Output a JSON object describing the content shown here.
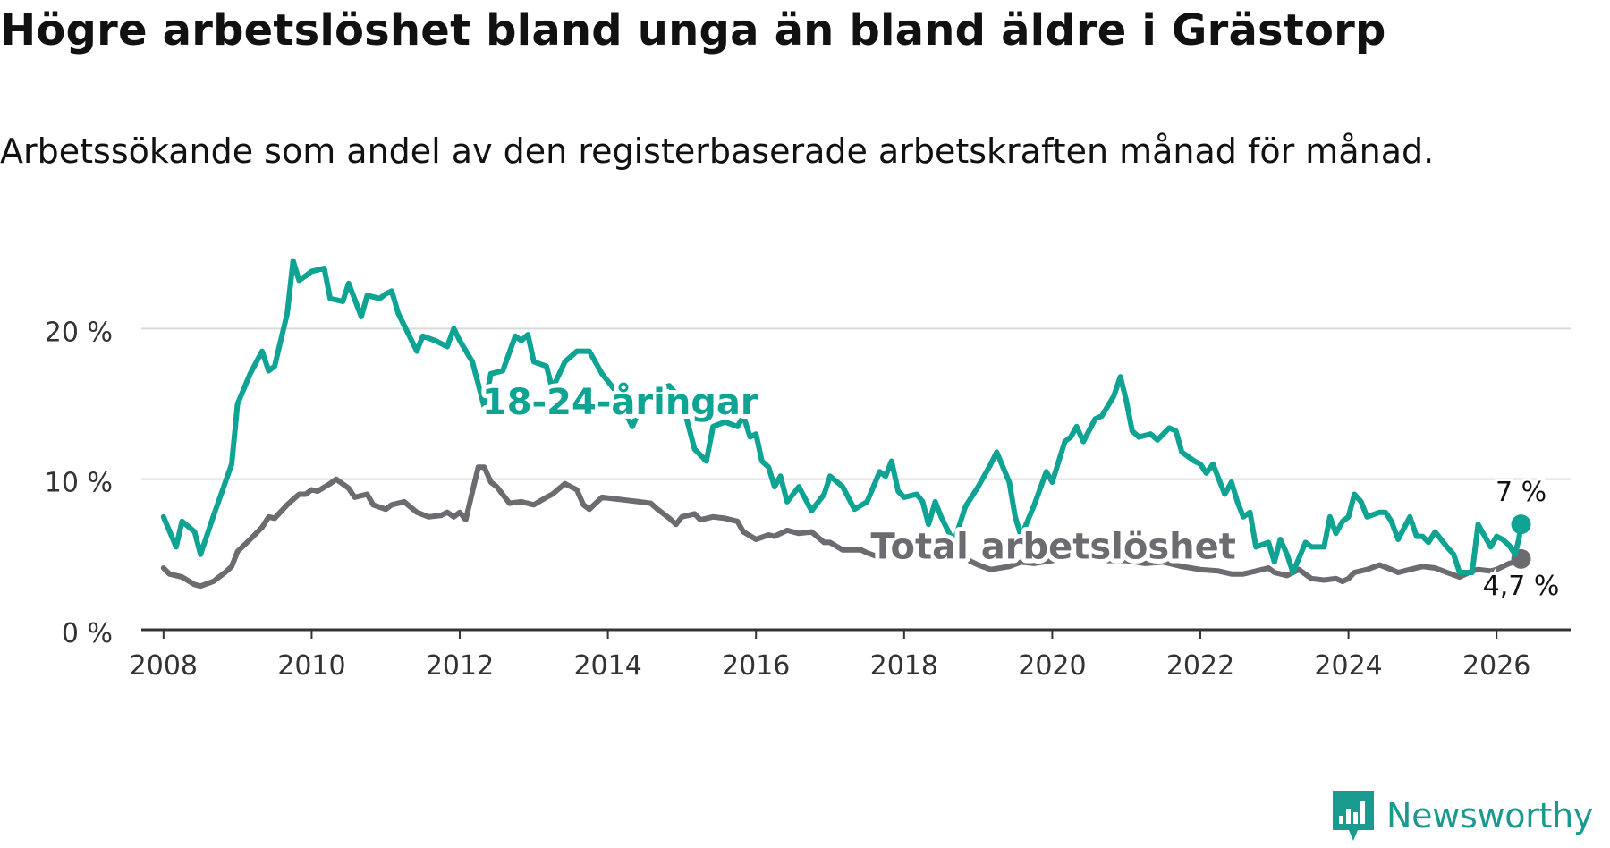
{
  "title": "Högre arbetslöshet bland unga än bland äldre i Grästorp",
  "subtitle": "Arbetssökande som andel av den registerbaserade arbetskraften månad för månad.",
  "brand": {
    "name": "Newsworthy",
    "icon": "newsworthy-logo-icon"
  },
  "colors": {
    "youth": "#0ea393",
    "total": "#6c6b70",
    "grid": "#d9d9d9",
    "axis": "#333333"
  },
  "chart_data": {
    "type": "line",
    "title": "Högre arbetslöshet bland unga än bland äldre i Grästorp",
    "xlabel": "",
    "ylabel": "",
    "xlim": [
      2007.7,
      2027.0
    ],
    "ylim": [
      0,
      24
    ],
    "yticks": [
      0,
      10,
      20
    ],
    "ytick_labels": [
      "0 %",
      "10 %",
      "20 %"
    ],
    "xticks": [
      2008,
      2010,
      2012,
      2014,
      2016,
      2018,
      2020,
      2022,
      2024,
      2026
    ],
    "xtick_labels": [
      "2008",
      "2010",
      "2012",
      "2014",
      "2016",
      "2018",
      "2020",
      "2022",
      "2024",
      "2026"
    ],
    "grid": true,
    "series": [
      {
        "name": "18-24-åringar",
        "label_text": "18-24-åringar",
        "color": "#0ea393",
        "end_label": "7 %",
        "end_value": 7.0,
        "points": [
          [
            2008.0,
            7.5
          ],
          [
            2008.17,
            5.5
          ],
          [
            2008.25,
            7.2
          ],
          [
            2008.42,
            6.5
          ],
          [
            2008.5,
            5.0
          ],
          [
            2008.67,
            7.5
          ],
          [
            2008.92,
            11.0
          ],
          [
            2009.0,
            15.0
          ],
          [
            2009.17,
            17.0
          ],
          [
            2009.33,
            18.5
          ],
          [
            2009.42,
            17.2
          ],
          [
            2009.5,
            17.5
          ],
          [
            2009.67,
            21.0
          ],
          [
            2009.75,
            24.5
          ],
          [
            2009.83,
            23.2
          ],
          [
            2009.92,
            23.5
          ],
          [
            2010.0,
            23.8
          ],
          [
            2010.17,
            24.0
          ],
          [
            2010.25,
            22.0
          ],
          [
            2010.42,
            21.8
          ],
          [
            2010.5,
            23.0
          ],
          [
            2010.67,
            20.8
          ],
          [
            2010.75,
            22.2
          ],
          [
            2010.92,
            22.0
          ],
          [
            2011.0,
            22.3
          ],
          [
            2011.08,
            22.5
          ],
          [
            2011.17,
            21.0
          ],
          [
            2011.42,
            18.5
          ],
          [
            2011.5,
            19.5
          ],
          [
            2011.67,
            19.2
          ],
          [
            2011.83,
            18.8
          ],
          [
            2011.92,
            20.0
          ],
          [
            2012.0,
            19.2
          ],
          [
            2012.17,
            17.8
          ],
          [
            2012.33,
            14.8
          ],
          [
            2012.42,
            17.0
          ],
          [
            2012.58,
            17.2
          ],
          [
            2012.75,
            19.5
          ],
          [
            2012.83,
            19.2
          ],
          [
            2012.92,
            19.6
          ],
          [
            2013.0,
            17.8
          ],
          [
            2013.17,
            17.5
          ],
          [
            2013.25,
            16.0
          ],
          [
            2013.42,
            17.8
          ],
          [
            2013.58,
            18.5
          ],
          [
            2013.75,
            18.5
          ],
          [
            2013.92,
            17.0
          ],
          [
            2014.08,
            16.0
          ],
          [
            2014.33,
            13.5
          ],
          [
            2014.5,
            15.5
          ],
          [
            2014.67,
            16.0
          ],
          [
            2014.83,
            16.2
          ],
          [
            2015.0,
            15.2
          ],
          [
            2015.17,
            12.0
          ],
          [
            2015.33,
            11.2
          ],
          [
            2015.42,
            13.5
          ],
          [
            2015.58,
            13.8
          ],
          [
            2015.75,
            13.5
          ],
          [
            2015.83,
            14.2
          ],
          [
            2015.92,
            12.8
          ],
          [
            2016.0,
            13.0
          ],
          [
            2016.08,
            11.2
          ],
          [
            2016.17,
            10.8
          ],
          [
            2016.25,
            9.5
          ],
          [
            2016.33,
            10.2
          ],
          [
            2016.42,
            8.5
          ],
          [
            2016.58,
            9.5
          ],
          [
            2016.75,
            7.9
          ],
          [
            2016.92,
            9.0
          ],
          [
            2017.0,
            10.2
          ],
          [
            2017.17,
            9.5
          ],
          [
            2017.33,
            8.0
          ],
          [
            2017.5,
            8.5
          ],
          [
            2017.67,
            10.5
          ],
          [
            2017.75,
            10.2
          ],
          [
            2017.83,
            11.2
          ],
          [
            2017.92,
            9.2
          ],
          [
            2018.0,
            8.8
          ],
          [
            2018.17,
            9.0
          ],
          [
            2018.25,
            8.5
          ],
          [
            2018.33,
            7.0
          ],
          [
            2018.42,
            8.5
          ],
          [
            2018.5,
            7.5
          ],
          [
            2018.67,
            5.8
          ],
          [
            2018.83,
            8.2
          ],
          [
            2019.0,
            9.5
          ],
          [
            2019.17,
            11.0
          ],
          [
            2019.25,
            11.8
          ],
          [
            2019.42,
            9.8
          ],
          [
            2019.5,
            7.5
          ],
          [
            2019.58,
            6.2
          ],
          [
            2019.75,
            8.2
          ],
          [
            2019.92,
            10.5
          ],
          [
            2020.0,
            9.8
          ],
          [
            2020.17,
            12.5
          ],
          [
            2020.25,
            12.8
          ],
          [
            2020.33,
            13.5
          ],
          [
            2020.42,
            12.5
          ],
          [
            2020.58,
            14.0
          ],
          [
            2020.67,
            14.2
          ],
          [
            2020.83,
            15.5
          ],
          [
            2020.92,
            16.8
          ],
          [
            2021.0,
            15.2
          ],
          [
            2021.08,
            13.2
          ],
          [
            2021.17,
            12.8
          ],
          [
            2021.33,
            13.0
          ],
          [
            2021.42,
            12.6
          ],
          [
            2021.58,
            13.4
          ],
          [
            2021.67,
            13.2
          ],
          [
            2021.75,
            11.8
          ],
          [
            2021.92,
            11.2
          ],
          [
            2022.0,
            11.0
          ],
          [
            2022.08,
            10.4
          ],
          [
            2022.17,
            11.0
          ],
          [
            2022.25,
            10.0
          ],
          [
            2022.33,
            9.0
          ],
          [
            2022.42,
            9.8
          ],
          [
            2022.5,
            8.5
          ],
          [
            2022.58,
            7.5
          ],
          [
            2022.67,
            7.8
          ],
          [
            2022.75,
            5.5
          ],
          [
            2022.92,
            5.8
          ],
          [
            2023.0,
            4.5
          ],
          [
            2023.08,
            6.0
          ],
          [
            2023.17,
            5.0
          ],
          [
            2023.25,
            3.8
          ],
          [
            2023.42,
            5.8
          ],
          [
            2023.5,
            5.5
          ],
          [
            2023.67,
            5.5
          ],
          [
            2023.75,
            7.5
          ],
          [
            2023.83,
            6.4
          ],
          [
            2023.92,
            7.2
          ],
          [
            2024.0,
            7.5
          ],
          [
            2024.08,
            9.0
          ],
          [
            2024.17,
            8.5
          ],
          [
            2024.25,
            7.5
          ],
          [
            2024.42,
            7.8
          ],
          [
            2024.5,
            7.8
          ],
          [
            2024.58,
            7.2
          ],
          [
            2024.67,
            6.0
          ],
          [
            2024.83,
            7.5
          ],
          [
            2024.92,
            6.2
          ],
          [
            2025.0,
            6.2
          ],
          [
            2025.08,
            5.8
          ],
          [
            2025.17,
            6.5
          ],
          [
            2025.25,
            6.0
          ],
          [
            2025.33,
            5.5
          ],
          [
            2025.42,
            5.0
          ],
          [
            2025.5,
            3.8
          ],
          [
            2025.67,
            3.8
          ],
          [
            2025.75,
            7.0
          ],
          [
            2025.92,
            5.5
          ],
          [
            2026.0,
            6.2
          ],
          [
            2026.08,
            6.0
          ],
          [
            2026.17,
            5.6
          ],
          [
            2026.25,
            5.0
          ],
          [
            2026.3,
            6.0
          ],
          [
            2026.33,
            7.0
          ]
        ]
      },
      {
        "name": "Total arbetslöshet",
        "label_text": "Total arbetslöshet",
        "color": "#6c6b70",
        "end_label": "4,7 %",
        "end_value": 4.7,
        "points": [
          [
            2008.0,
            4.1
          ],
          [
            2008.08,
            3.7
          ],
          [
            2008.25,
            3.5
          ],
          [
            2008.42,
            3.0
          ],
          [
            2008.5,
            2.9
          ],
          [
            2008.67,
            3.2
          ],
          [
            2008.83,
            3.8
          ],
          [
            2008.92,
            4.2
          ],
          [
            2009.0,
            5.2
          ],
          [
            2009.17,
            6.0
          ],
          [
            2009.33,
            6.8
          ],
          [
            2009.42,
            7.5
          ],
          [
            2009.5,
            7.4
          ],
          [
            2009.67,
            8.3
          ],
          [
            2009.83,
            9.0
          ],
          [
            2009.92,
            9.0
          ],
          [
            2010.0,
            9.3
          ],
          [
            2010.08,
            9.2
          ],
          [
            2010.25,
            9.7
          ],
          [
            2010.33,
            10.0
          ],
          [
            2010.5,
            9.4
          ],
          [
            2010.58,
            8.8
          ],
          [
            2010.75,
            9.0
          ],
          [
            2010.83,
            8.3
          ],
          [
            2011.0,
            8.0
          ],
          [
            2011.08,
            8.3
          ],
          [
            2011.25,
            8.5
          ],
          [
            2011.42,
            7.8
          ],
          [
            2011.58,
            7.5
          ],
          [
            2011.75,
            7.6
          ],
          [
            2011.83,
            7.8
          ],
          [
            2011.92,
            7.5
          ],
          [
            2012.0,
            7.8
          ],
          [
            2012.08,
            7.3
          ],
          [
            2012.25,
            10.8
          ],
          [
            2012.33,
            10.8
          ],
          [
            2012.42,
            9.8
          ],
          [
            2012.5,
            9.5
          ],
          [
            2012.67,
            8.4
          ],
          [
            2012.83,
            8.5
          ],
          [
            2013.0,
            8.3
          ],
          [
            2013.17,
            8.8
          ],
          [
            2013.25,
            9.0
          ],
          [
            2013.42,
            9.7
          ],
          [
            2013.58,
            9.3
          ],
          [
            2013.67,
            8.3
          ],
          [
            2013.75,
            8.0
          ],
          [
            2013.92,
            8.8
          ],
          [
            2014.08,
            8.7
          ],
          [
            2014.25,
            8.6
          ],
          [
            2014.42,
            8.5
          ],
          [
            2014.58,
            8.4
          ],
          [
            2014.67,
            8.0
          ],
          [
            2014.83,
            7.4
          ],
          [
            2014.92,
            7.0
          ],
          [
            2015.0,
            7.5
          ],
          [
            2015.17,
            7.7
          ],
          [
            2015.25,
            7.3
          ],
          [
            2015.42,
            7.5
          ],
          [
            2015.58,
            7.4
          ],
          [
            2015.75,
            7.2
          ],
          [
            2015.83,
            6.5
          ],
          [
            2016.0,
            6.0
          ],
          [
            2016.17,
            6.3
          ],
          [
            2016.25,
            6.2
          ],
          [
            2016.42,
            6.6
          ],
          [
            2016.58,
            6.4
          ],
          [
            2016.75,
            6.5
          ],
          [
            2016.92,
            5.8
          ],
          [
            2017.0,
            5.8
          ],
          [
            2017.17,
            5.3
          ],
          [
            2017.42,
            5.3
          ],
          [
            2017.5,
            5.1
          ],
          [
            2017.67,
            4.8
          ],
          [
            2017.83,
            5.2
          ],
          [
            2018.0,
            5.3
          ],
          [
            2018.25,
            5.0
          ],
          [
            2018.42,
            5.3
          ],
          [
            2018.58,
            5.1
          ],
          [
            2018.75,
            4.9
          ],
          [
            2019.0,
            4.3
          ],
          [
            2019.17,
            4.0
          ],
          [
            2019.42,
            4.2
          ],
          [
            2019.58,
            4.5
          ],
          [
            2019.75,
            4.4
          ],
          [
            2020.0,
            4.6
          ],
          [
            2020.25,
            4.8
          ],
          [
            2020.5,
            5.0
          ],
          [
            2020.75,
            4.6
          ],
          [
            2021.0,
            4.6
          ],
          [
            2021.25,
            4.4
          ],
          [
            2021.5,
            4.5
          ],
          [
            2021.75,
            4.2
          ],
          [
            2022.0,
            4.0
          ],
          [
            2022.25,
            3.9
          ],
          [
            2022.42,
            3.7
          ],
          [
            2022.58,
            3.7
          ],
          [
            2022.75,
            3.9
          ],
          [
            2022.92,
            4.1
          ],
          [
            2023.0,
            3.8
          ],
          [
            2023.17,
            3.6
          ],
          [
            2023.33,
            4.0
          ],
          [
            2023.5,
            3.4
          ],
          [
            2023.67,
            3.3
          ],
          [
            2023.83,
            3.4
          ],
          [
            2023.92,
            3.2
          ],
          [
            2024.0,
            3.4
          ],
          [
            2024.08,
            3.8
          ],
          [
            2024.25,
            4.0
          ],
          [
            2024.42,
            4.3
          ],
          [
            2024.58,
            4.0
          ],
          [
            2024.67,
            3.8
          ],
          [
            2024.83,
            4.0
          ],
          [
            2025.0,
            4.2
          ],
          [
            2025.17,
            4.1
          ],
          [
            2025.33,
            3.8
          ],
          [
            2025.5,
            3.5
          ],
          [
            2025.67,
            3.9
          ],
          [
            2025.75,
            4.0
          ],
          [
            2025.92,
            3.9
          ],
          [
            2026.0,
            4.0
          ],
          [
            2026.17,
            4.4
          ],
          [
            2026.25,
            4.5
          ],
          [
            2026.33,
            4.7
          ]
        ]
      }
    ]
  }
}
